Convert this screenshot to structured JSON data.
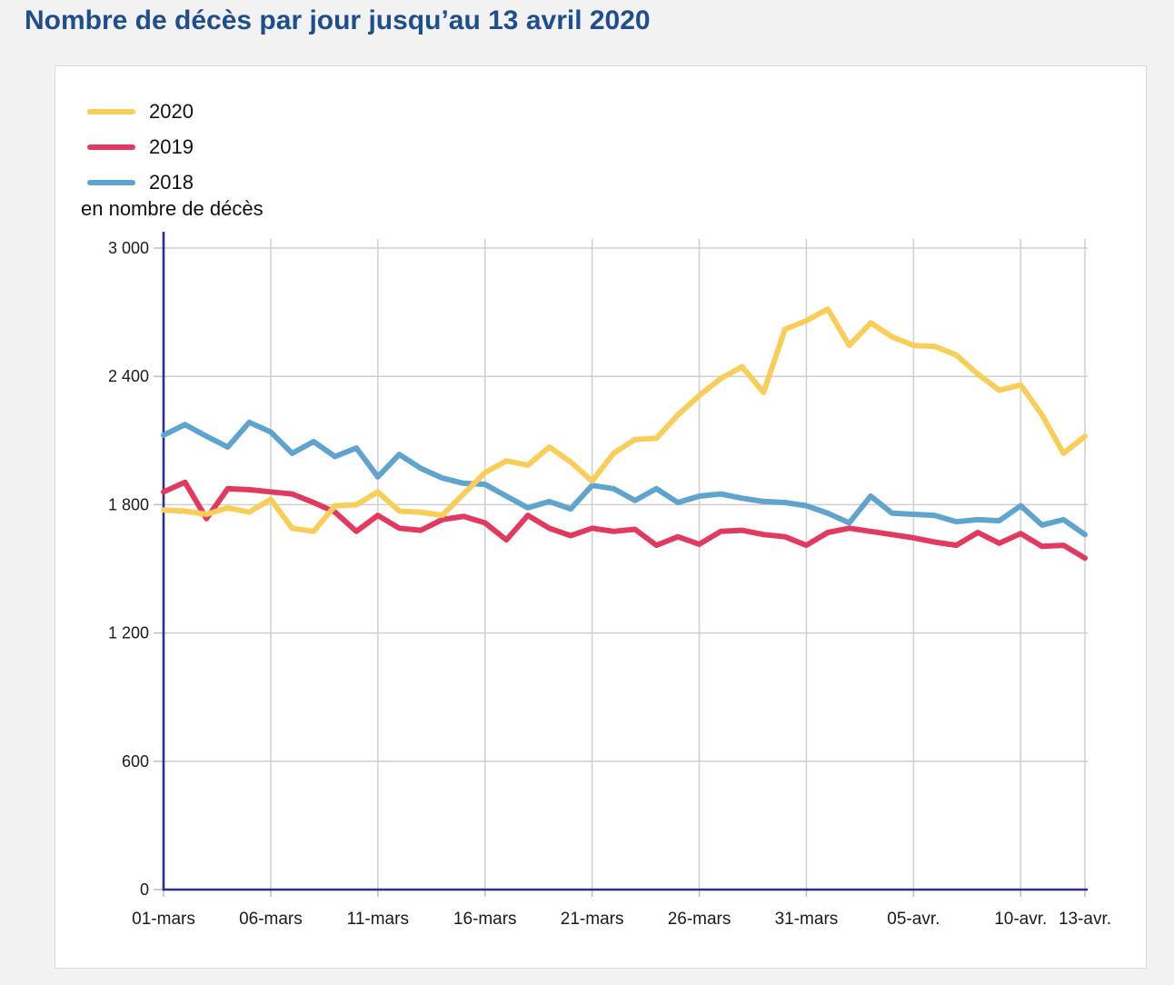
{
  "page": {
    "title": "Nombre de décès par jour jusqu’au 13 avril 2020"
  },
  "chart_data": {
    "type": "line",
    "title": "Nombre de décès par jour jusqu’au 13 avril 2020",
    "ylabel": "en nombre de décès",
    "xlabel": "",
    "ylim": [
      0,
      3000
    ],
    "ytick_step": 600,
    "ytick_labels": [
      "0",
      "600",
      "1 200",
      "1 800",
      "2 400",
      "3 000"
    ],
    "grid": true,
    "legend_position": "top-left",
    "x": [
      "01-mars",
      "02-mars",
      "03-mars",
      "04-mars",
      "05-mars",
      "06-mars",
      "07-mars",
      "08-mars",
      "09-mars",
      "10-mars",
      "11-mars",
      "12-mars",
      "13-mars",
      "14-mars",
      "15-mars",
      "16-mars",
      "17-mars",
      "18-mars",
      "19-mars",
      "20-mars",
      "21-mars",
      "22-mars",
      "23-mars",
      "24-mars",
      "25-mars",
      "26-mars",
      "27-mars",
      "28-mars",
      "29-mars",
      "30-mars",
      "31-mars",
      "01-avr.",
      "02-avr.",
      "03-avr.",
      "04-avr.",
      "05-avr.",
      "06-avr.",
      "07-avr.",
      "08-avr.",
      "09-avr.",
      "10-avr.",
      "11-avr.",
      "12-avr.",
      "13-avr."
    ],
    "xtick_indices": [
      0,
      5,
      10,
      15,
      20,
      25,
      30,
      35,
      40,
      43
    ],
    "xtick_labels": [
      "01-mars",
      "06-mars",
      "11-mars",
      "16-mars",
      "21-mars",
      "26-mars",
      "31-mars",
      "05-avr.",
      "10-avr.",
      "13-avr."
    ],
    "series": [
      {
        "name": "2020",
        "color": "#f9ce58",
        "values": [
          1775,
          1770,
          1755,
          1785,
          1765,
          1825,
          1690,
          1675,
          1795,
          1800,
          1860,
          1770,
          1765,
          1750,
          1850,
          1950,
          2005,
          1985,
          2070,
          2000,
          1910,
          2040,
          2105,
          2110,
          2220,
          2310,
          2390,
          2445,
          2325,
          2620,
          2660,
          2715,
          2545,
          2650,
          2585,
          2545,
          2540,
          2500,
          2410,
          2335,
          2360,
          2220,
          2040,
          2120
        ]
      },
      {
        "name": "2019",
        "color": "#e23a5f",
        "values": [
          1860,
          1905,
          1735,
          1875,
          1870,
          1860,
          1850,
          1810,
          1765,
          1675,
          1750,
          1690,
          1680,
          1730,
          1745,
          1715,
          1635,
          1750,
          1690,
          1655,
          1690,
          1675,
          1685,
          1610,
          1650,
          1615,
          1675,
          1680,
          1660,
          1650,
          1610,
          1670,
          1690,
          1675,
          1660,
          1645,
          1625,
          1610,
          1670,
          1620,
          1665,
          1605,
          1610,
          1550
        ]
      },
      {
        "name": "2018",
        "color": "#5fa4cf",
        "values": [
          2125,
          2175,
          2120,
          2070,
          2185,
          2140,
          2040,
          2095,
          2025,
          2065,
          1930,
          2035,
          1970,
          1925,
          1900,
          1895,
          1840,
          1785,
          1815,
          1780,
          1890,
          1875,
          1820,
          1875,
          1810,
          1840,
          1850,
          1830,
          1815,
          1810,
          1795,
          1760,
          1715,
          1840,
          1760,
          1755,
          1750,
          1720,
          1730,
          1725,
          1795,
          1705,
          1730,
          1660
        ]
      }
    ],
    "style": {
      "axis_color": "#2b3186",
      "grid_color": "#cfcfcf",
      "tick_text_color": "#1a1a1a",
      "line_width": 6
    }
  }
}
